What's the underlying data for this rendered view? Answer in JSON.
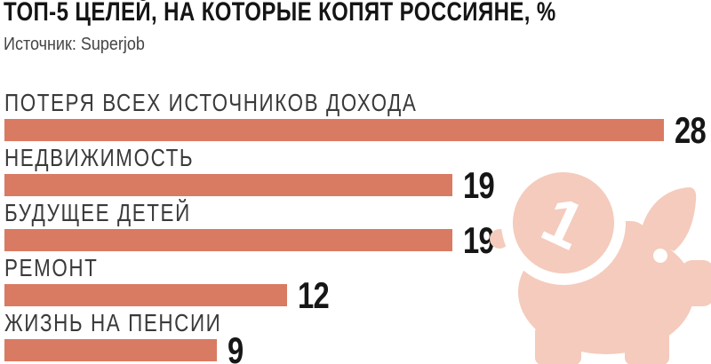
{
  "header": {
    "title": "ТОП-5 ЦЕЛЕЙ, НА КОТОРЫЕ КОПЯТ РОССИЯНЕ, %",
    "source": "Источник: Superjob"
  },
  "chart_data": {
    "type": "bar",
    "orientation": "horizontal",
    "title": "ТОП-5 ЦЕЛЕЙ, НА КОТОРЫЕ КОПЯТ РОССИЯНЕ, %",
    "source": "Источник: Superjob",
    "categories": [
      "ПОТЕРЯ ВСЕХ ИСТОЧНИКОВ ДОХОДА",
      "НЕДВИЖИМОСТЬ",
      "БУДУЩЕЕ ДЕТЕЙ",
      "РЕМОНТ",
      "ЖИЗНЬ НА ПЕНСИИ"
    ],
    "values": [
      28,
      19,
      19,
      12,
      9
    ],
    "unit": "%",
    "xlim": [
      0,
      28
    ],
    "grid": false,
    "legend": false,
    "value_label_position": "right-of-bar",
    "bar_color": "#D97A62"
  },
  "icon": {
    "piggy_bank": {
      "name": "piggy-bank-with-coin",
      "coin_digit": "1",
      "color": "#F4CBBC"
    }
  },
  "colors": {
    "background": "#FFFFFF",
    "bar": "#D97A62",
    "pig": "#F4CBBC",
    "title_text": "#151515",
    "label_text": "#3A3A3A",
    "value_text": "#161616",
    "source_text": "#454545",
    "white": "#FFFFFF"
  }
}
